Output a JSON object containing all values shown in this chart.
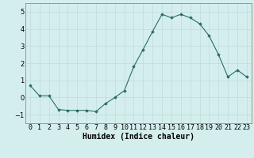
{
  "x": [
    0,
    1,
    2,
    3,
    4,
    5,
    6,
    7,
    8,
    9,
    10,
    11,
    12,
    13,
    14,
    15,
    16,
    17,
    18,
    19,
    20,
    21,
    22,
    23
  ],
  "y": [
    0.7,
    0.1,
    0.1,
    -0.7,
    -0.75,
    -0.75,
    -0.75,
    -0.82,
    -0.35,
    0.0,
    0.4,
    1.8,
    2.8,
    3.85,
    4.85,
    4.65,
    4.85,
    4.65,
    4.3,
    3.6,
    2.5,
    1.2,
    1.6,
    1.2
  ],
  "xlabel": "Humidex (Indice chaleur)",
  "ylim": [
    -1.5,
    5.5
  ],
  "xlim": [
    -0.5,
    23.5
  ],
  "line_color": "#2a6e63",
  "marker_color": "#2a6e63",
  "bg_color": "#d4eeee",
  "grid_color_major": "#c0dada",
  "grid_color_minor": "#c0dada",
  "yticks": [
    -1,
    0,
    1,
    2,
    3,
    4,
    5
  ],
  "xtick_labels": [
    "0",
    "1",
    "2",
    "3",
    "4",
    "5",
    "6",
    "7",
    "8",
    "9",
    "10",
    "11",
    "12",
    "13",
    "14",
    "15",
    "16",
    "17",
    "18",
    "19",
    "20",
    "21",
    "22",
    "23"
  ],
  "xlabel_fontsize": 7,
  "tick_fontsize": 6
}
